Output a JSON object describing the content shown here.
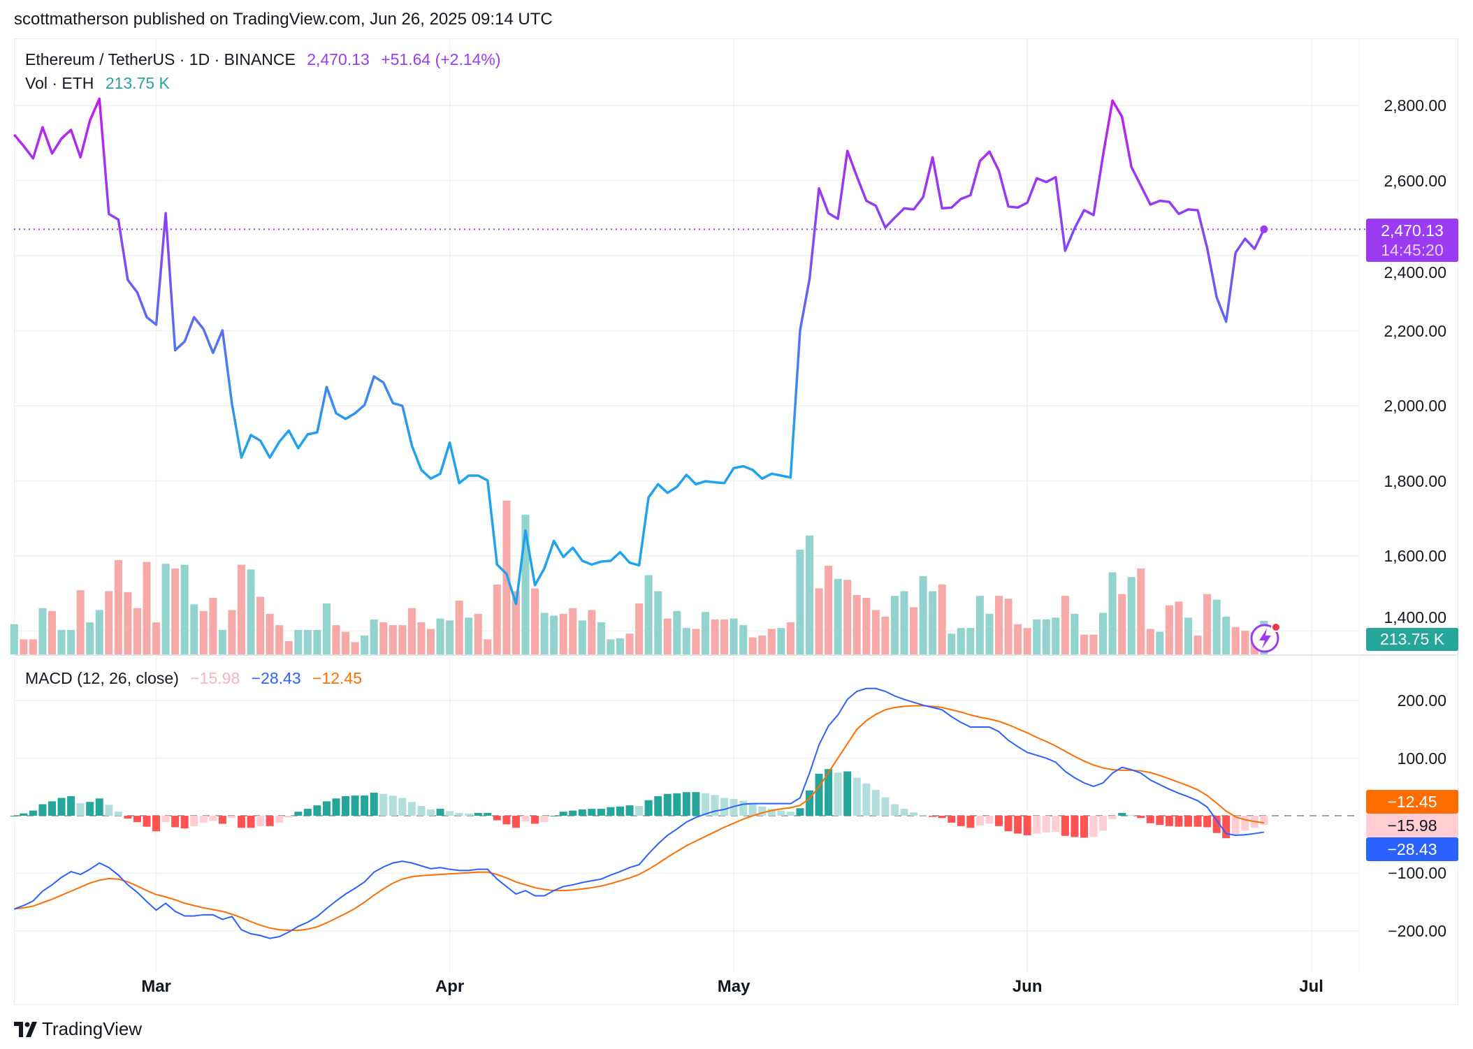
{
  "header": {
    "text": "scottmatherson published on TradingView.com, Jun 26, 2025 09:14 UTC"
  },
  "legend": {
    "symbol": "Ethereum / TetherUS · 1D · BINANCE",
    "price": "2,470.13",
    "change": "+51.64 (+2.14%)",
    "volume_label": "Vol · ETH",
    "volume_value": "213.75 K",
    "macd_label": "MACD (12, 26, close)",
    "macd_hist": "−15.98",
    "macd_line": "−28.43",
    "macd_signal": "−12.45"
  },
  "price_tag": {
    "price": "2,470.13",
    "countdown": "14:45:20"
  },
  "volume_tag": "213.75 K",
  "macd_tags": {
    "signal": "−12.45",
    "hist": "−15.98",
    "macd": "−28.43"
  },
  "brand": {
    "logo_text": "TradingView"
  },
  "colors": {
    "price_high": "#c41bf0",
    "price_mid": "#7d4cf6",
    "price_low": "#1fa3ef",
    "price_accent": "#9b3cf3",
    "vol_up": "#92d3cd",
    "vol_down": "#f6a9a6",
    "macd_line": "#2962ff",
    "signal_line": "#ff6d00",
    "hist_up_strong": "#26a69a",
    "hist_up_weak": "#b2dfdb",
    "hist_down_strong": "#ff5252",
    "hist_down_weak": "#ffcdd2",
    "volume_accent": "#26a69a"
  },
  "chart_data": [
    {
      "type": "line",
      "title": "Ethereum / TetherUS · 1D · BINANCE",
      "ylim": [
        1400,
        2850
      ],
      "y_ticks": [
        "2,800.00",
        "2,600.00",
        "2,400.00",
        "2,200.00",
        "2,000.00",
        "1,800.00",
        "1,600.00",
        "1,400.00"
      ],
      "y_tick_values": [
        2800,
        2600,
        2400,
        2200,
        2000,
        1800,
        1600,
        1400
      ],
      "x_ticks": [
        {
          "label": "Mar",
          "date": "2025-03-01"
        },
        {
          "label": "Apr",
          "date": "2025-04-01"
        },
        {
          "label": "May",
          "date": "2025-05-01"
        },
        {
          "label": "Jun",
          "date": "2025-06-01"
        },
        {
          "label": "Jul",
          "date": "2025-07-01"
        }
      ],
      "grid": true,
      "last_value": 2470.13,
      "dates": [
        "2025-02-14",
        "2025-02-15",
        "2025-02-16",
        "2025-02-17",
        "2025-02-18",
        "2025-02-19",
        "2025-02-20",
        "2025-02-21",
        "2025-02-22",
        "2025-02-23",
        "2025-02-24",
        "2025-02-25",
        "2025-02-26",
        "2025-02-27",
        "2025-02-28",
        "2025-03-01",
        "2025-03-02",
        "2025-03-03",
        "2025-03-04",
        "2025-03-05",
        "2025-03-06",
        "2025-03-07",
        "2025-03-08",
        "2025-03-09",
        "2025-03-10",
        "2025-03-11",
        "2025-03-12",
        "2025-03-13",
        "2025-03-14",
        "2025-03-15",
        "2025-03-16",
        "2025-03-17",
        "2025-03-18",
        "2025-03-19",
        "2025-03-20",
        "2025-03-21",
        "2025-03-22",
        "2025-03-23",
        "2025-03-24",
        "2025-03-25",
        "2025-03-26",
        "2025-03-27",
        "2025-03-28",
        "2025-03-29",
        "2025-03-30",
        "2025-03-31",
        "2025-04-01",
        "2025-04-02",
        "2025-04-03",
        "2025-04-04",
        "2025-04-05",
        "2025-04-06",
        "2025-04-07",
        "2025-04-08",
        "2025-04-09",
        "2025-04-10",
        "2025-04-11",
        "2025-04-12",
        "2025-04-13",
        "2025-04-14",
        "2025-04-15",
        "2025-04-16",
        "2025-04-17",
        "2025-04-18",
        "2025-04-19",
        "2025-04-20",
        "2025-04-21",
        "2025-04-22",
        "2025-04-23",
        "2025-04-24",
        "2025-04-25",
        "2025-04-26",
        "2025-04-27",
        "2025-04-28",
        "2025-04-29",
        "2025-04-30",
        "2025-05-01",
        "2025-05-02",
        "2025-05-03",
        "2025-05-04",
        "2025-05-05",
        "2025-05-06",
        "2025-05-07",
        "2025-05-08",
        "2025-05-09",
        "2025-05-10",
        "2025-05-11",
        "2025-05-12",
        "2025-05-13",
        "2025-05-14",
        "2025-05-15",
        "2025-05-16",
        "2025-05-17",
        "2025-05-18",
        "2025-05-19",
        "2025-05-20",
        "2025-05-21",
        "2025-05-22",
        "2025-05-23",
        "2025-05-24",
        "2025-05-25",
        "2025-05-26",
        "2025-05-27",
        "2025-05-28",
        "2025-05-29",
        "2025-05-30",
        "2025-05-31",
        "2025-06-01",
        "2025-06-02",
        "2025-06-03",
        "2025-06-04",
        "2025-06-05",
        "2025-06-06",
        "2025-06-07",
        "2025-06-08",
        "2025-06-09",
        "2025-06-10",
        "2025-06-11",
        "2025-06-12",
        "2025-06-13",
        "2025-06-14",
        "2025-06-15",
        "2025-06-16",
        "2025-06-17",
        "2025-06-18",
        "2025-06-19",
        "2025-06-20",
        "2025-06-21",
        "2025-06-22",
        "2025-06-23",
        "2025-06-24",
        "2025-06-25",
        "2025-06-26"
      ],
      "close": [
        2722,
        2692,
        2659,
        2742,
        2672,
        2712,
        2735,
        2662,
        2760,
        2818,
        2511,
        2496,
        2335,
        2302,
        2236,
        2216,
        2513,
        2148,
        2171,
        2236,
        2204,
        2141,
        2201,
        2005,
        1862,
        1922,
        1907,
        1862,
        1904,
        1934,
        1887,
        1924,
        1929,
        2050,
        1980,
        1965,
        1980,
        2002,
        2078,
        2062,
        2007,
        2000,
        1894,
        1829,
        1806,
        1819,
        1902,
        1794,
        1814,
        1814,
        1801,
        1577,
        1552,
        1472,
        1668,
        1522,
        1567,
        1640,
        1597,
        1622,
        1587,
        1577,
        1585,
        1587,
        1610,
        1582,
        1575,
        1756,
        1791,
        1768,
        1784,
        1816,
        1791,
        1799,
        1796,
        1794,
        1834,
        1839,
        1829,
        1806,
        1819,
        1814,
        1809,
        2201,
        2337,
        2579,
        2513,
        2498,
        2679,
        2611,
        2546,
        2533,
        2475,
        2501,
        2526,
        2523,
        2556,
        2662,
        2526,
        2528,
        2551,
        2561,
        2652,
        2677,
        2626,
        2531,
        2528,
        2541,
        2606,
        2596,
        2609,
        2413,
        2473,
        2521,
        2508,
        2667,
        2813,
        2770,
        2636,
        2586,
        2536,
        2546,
        2543,
        2511,
        2523,
        2521,
        2420,
        2289,
        2224,
        2408,
        2445,
        2418,
        2470.13
      ]
    },
    {
      "type": "bar",
      "title": "Vol · ETH",
      "unit": "K",
      "last_value": 213.75,
      "values": [
        192,
        96,
        96,
        294,
        276,
        156,
        156,
        408,
        204,
        282,
        402,
        600,
        396,
        294,
        588,
        204,
        576,
        546,
        570,
        318,
        276,
        360,
        156,
        282,
        570,
        540,
        366,
        258,
        186,
        84,
        156,
        156,
        156,
        324,
        186,
        144,
        78,
        120,
        222,
        204,
        186,
        186,
        294,
        204,
        162,
        228,
        216,
        342,
        234,
        258,
        96,
        444,
        978,
        402,
        888,
        420,
        264,
        246,
        258,
        294,
        216,
        282,
        204,
        96,
        102,
        132,
        324,
        504,
        402,
        228,
        276,
        168,
        162,
        270,
        222,
        222,
        228,
        186,
        108,
        120,
        162,
        168,
        204,
        666,
        756,
        420,
        564,
        480,
        474,
        378,
        360,
        282,
        240,
        372,
        402,
        300,
        498,
        402,
        444,
        132,
        168,
        168,
        372,
        258,
        372,
        354,
        192,
        168,
        222,
        222,
        234,
        372,
        258,
        126,
        126,
        264,
        522,
        384,
        492,
        546,
        162,
        144,
        312,
        336,
        234,
        120,
        384,
        348,
        240,
        174,
        150,
        140,
        213.75
      ],
      "up": [
        1,
        0,
        0,
        1,
        0,
        1,
        1,
        0,
        1,
        1,
        0,
        0,
        0,
        0,
        0,
        0,
        1,
        0,
        1,
        1,
        0,
        0,
        1,
        0,
        0,
        1,
        0,
        0,
        0,
        0,
        1,
        1,
        1,
        1,
        0,
        0,
        0,
        1,
        1,
        0,
        0,
        0,
        0,
        0,
        0,
        1,
        1,
        0,
        1,
        0,
        0,
        0,
        0,
        0,
        1,
        0,
        1,
        1,
        0,
        0,
        1,
        0,
        1,
        1,
        1,
        0,
        0,
        1,
        1,
        0,
        1,
        1,
        0,
        1,
        0,
        0,
        1,
        1,
        0,
        0,
        0,
        1,
        0,
        1,
        1,
        0,
        0,
        1,
        0,
        0,
        0,
        0,
        0,
        1,
        1,
        0,
        1,
        1,
        0,
        1,
        1,
        1,
        1,
        1,
        0,
        0,
        0,
        0,
        1,
        1,
        1,
        0,
        1,
        0,
        0,
        1,
        1,
        0,
        1,
        0,
        0,
        1,
        0,
        0,
        1,
        0,
        0,
        1,
        1,
        0,
        0,
        0,
        1
      ]
    },
    {
      "type": "line",
      "title": "MACD (12, 26, close)",
      "y_ticks": [
        "200.00",
        "100.00",
        "−100.00",
        "−200.00"
      ],
      "y_tick_values": [
        200,
        100,
        -100,
        -200
      ],
      "series": [
        {
          "name": "MACD",
          "values": [
            -162,
            -156,
            -148,
            -131,
            -120,
            -107,
            -97,
            -102,
            -93,
            -82,
            -90,
            -103,
            -120,
            -133,
            -149,
            -164,
            -152,
            -166,
            -174,
            -174,
            -172,
            -172,
            -180,
            -175,
            -198,
            -205,
            -208,
            -213,
            -210,
            -202,
            -192,
            -185,
            -175,
            -161,
            -148,
            -136,
            -126,
            -115,
            -98,
            -89,
            -82,
            -79,
            -82,
            -87,
            -92,
            -90,
            -93,
            -95,
            -95,
            -93,
            -93,
            -110,
            -123,
            -136,
            -130,
            -139,
            -139,
            -130,
            -123,
            -120,
            -116,
            -113,
            -110,
            -103,
            -97,
            -90,
            -85,
            -66,
            -49,
            -34,
            -23,
            -11,
            -3,
            3,
            8,
            11,
            16,
            20,
            21,
            21,
            21,
            21,
            21,
            31,
            74,
            123,
            156,
            175,
            202,
            216,
            221,
            221,
            216,
            208,
            202,
            197,
            192,
            188,
            184,
            172,
            162,
            154,
            154,
            154,
            146,
            131,
            120,
            110,
            105,
            100,
            93,
            77,
            66,
            57,
            51,
            57,
            74,
            84,
            80,
            74,
            62,
            54,
            46,
            39,
            33,
            26,
            15,
            -8,
            -31,
            -34,
            -33,
            -31,
            -28.43
          ]
        },
        {
          "name": "Signal",
          "values": [
            -162,
            -160,
            -157,
            -151,
            -145,
            -138,
            -131,
            -124,
            -117,
            -112,
            -109,
            -110,
            -115,
            -122,
            -130,
            -137,
            -141,
            -146,
            -152,
            -156,
            -160,
            -163,
            -166,
            -171,
            -177,
            -184,
            -190,
            -195,
            -198,
            -199,
            -199,
            -197,
            -193,
            -186,
            -178,
            -170,
            -161,
            -150,
            -138,
            -127,
            -117,
            -110,
            -106,
            -104,
            -103,
            -102,
            -101,
            -100,
            -99,
            -98,
            -98,
            -102,
            -108,
            -115,
            -120,
            -125,
            -128,
            -130,
            -130,
            -129,
            -127,
            -125,
            -122,
            -118,
            -113,
            -108,
            -102,
            -93,
            -83,
            -72,
            -62,
            -52,
            -44,
            -36,
            -28,
            -20,
            -13,
            -6,
            0,
            5,
            9,
            12,
            14,
            18,
            30,
            50,
            75,
            100,
            125,
            150,
            165,
            176,
            184,
            188,
            190,
            191,
            191,
            190,
            188,
            184,
            180,
            175,
            171,
            168,
            164,
            158,
            151,
            144,
            136,
            129,
            121,
            112,
            103,
            95,
            88,
            83,
            80,
            79,
            79,
            78,
            75,
            70,
            64,
            58,
            52,
            45,
            35,
            22,
            8,
            -2,
            -7,
            -10,
            -12.45
          ]
        }
      ],
      "histogram": "MACD − Signal",
      "last_values": {
        "histogram": -15.98,
        "macd": -28.43,
        "signal": -12.45
      }
    }
  ]
}
